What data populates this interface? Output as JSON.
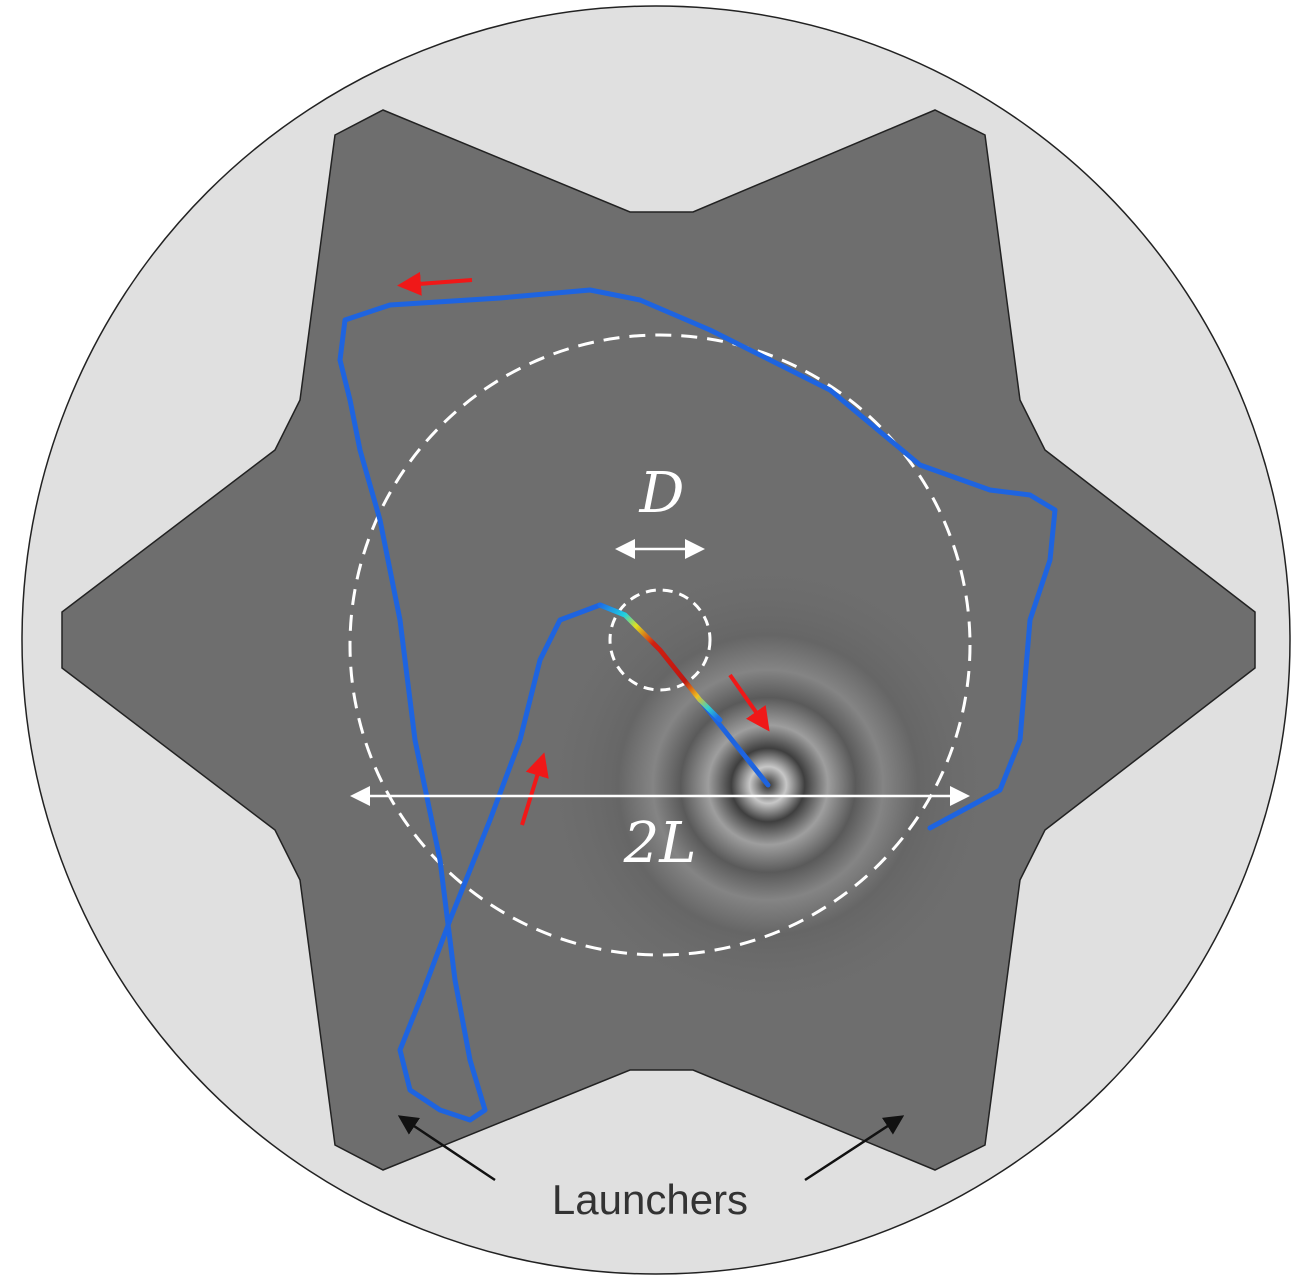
{
  "labels": {
    "diameter": "D",
    "domain_size": "2L",
    "launchers": "Launchers"
  }
}
